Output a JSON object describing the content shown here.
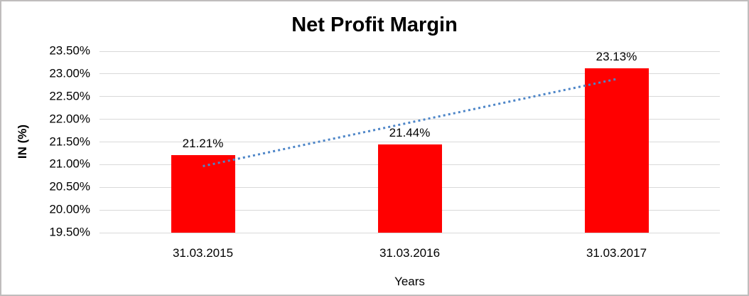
{
  "chart_data": {
    "type": "bar",
    "title": "Net Profit Margin",
    "categories": [
      "31.03.2015",
      "31.03.2016",
      "31.03.2017"
    ],
    "values": [
      21.21,
      21.44,
      23.13
    ],
    "value_labels": [
      "21.21%",
      "21.44%",
      "23.13%"
    ],
    "xlabel": "Years",
    "ylabel": "IN (%)",
    "ylim": [
      19.5,
      23.5
    ],
    "ytick_labels": [
      "19.50%",
      "20.00%",
      "20.50%",
      "21.00%",
      "21.50%",
      "22.00%",
      "22.50%",
      "23.00%",
      "23.50%"
    ],
    "grid": true,
    "legend": "none",
    "bar_color": "#ff0000",
    "gridline_color": "#d9d9d9",
    "background_color": "#ffffff",
    "text_color": "#000000",
    "border_color": "#bfbdbd",
    "trendline": {
      "kind": "linear",
      "line_style": "dotted",
      "color": "#4e86c8"
    }
  }
}
